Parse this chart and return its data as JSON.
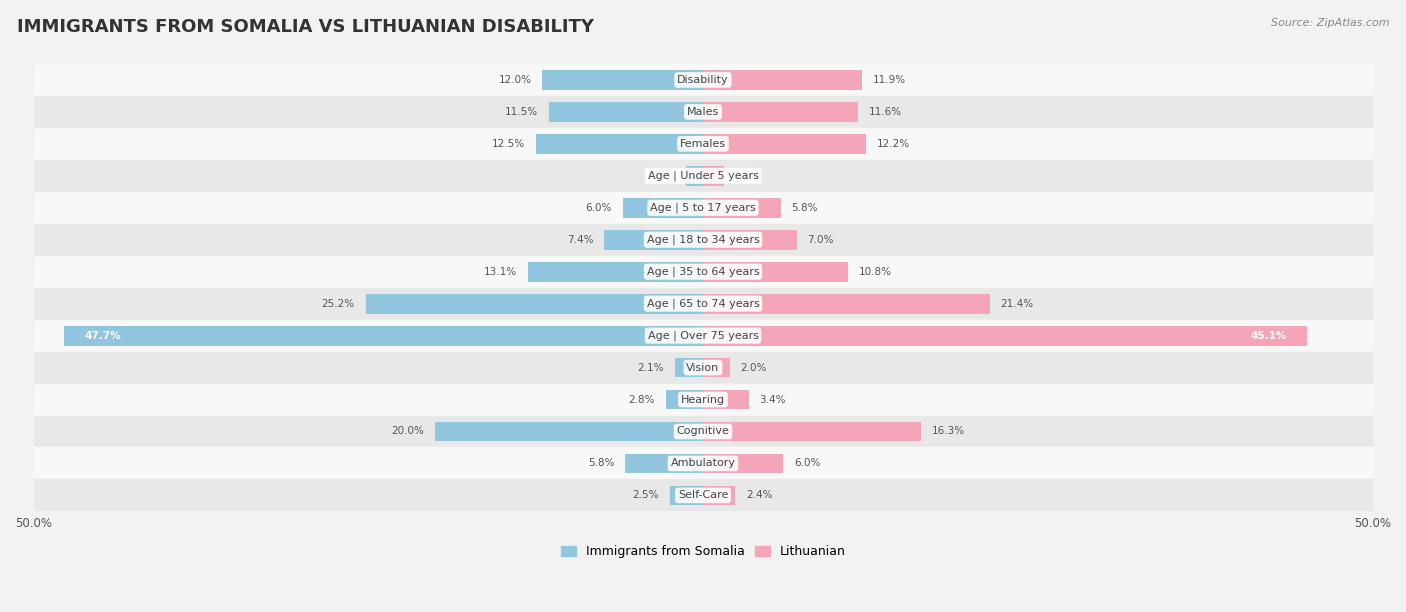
{
  "title": "IMMIGRANTS FROM SOMALIA VS LITHUANIAN DISABILITY",
  "source": "Source: ZipAtlas.com",
  "categories": [
    "Disability",
    "Males",
    "Females",
    "Age | Under 5 years",
    "Age | 5 to 17 years",
    "Age | 18 to 34 years",
    "Age | 35 to 64 years",
    "Age | 65 to 74 years",
    "Age | Over 75 years",
    "Vision",
    "Hearing",
    "Cognitive",
    "Ambulatory",
    "Self-Care"
  ],
  "somalia_values": [
    12.0,
    11.5,
    12.5,
    1.3,
    6.0,
    7.4,
    13.1,
    25.2,
    47.7,
    2.1,
    2.8,
    20.0,
    5.8,
    2.5
  ],
  "lithuanian_values": [
    11.9,
    11.6,
    12.2,
    1.6,
    5.8,
    7.0,
    10.8,
    21.4,
    45.1,
    2.0,
    3.4,
    16.3,
    6.0,
    2.4
  ],
  "somalia_color": "#92c5de",
  "lithuanian_color": "#f4a6b8",
  "somalia_color_dark": "#5b9fc8",
  "lithuanian_color_dark": "#e8688a",
  "somalia_label": "Immigrants from Somalia",
  "lithuanian_label": "Lithuanian",
  "axis_limit": 50.0,
  "background_color": "#f2f2f2",
  "row_bg_even": "#f8f8f8",
  "row_bg_odd": "#e8e8e8",
  "bar_height": 0.62,
  "title_fontsize": 13,
  "label_fontsize": 8,
  "value_fontsize": 7.5,
  "legend_fontsize": 9
}
